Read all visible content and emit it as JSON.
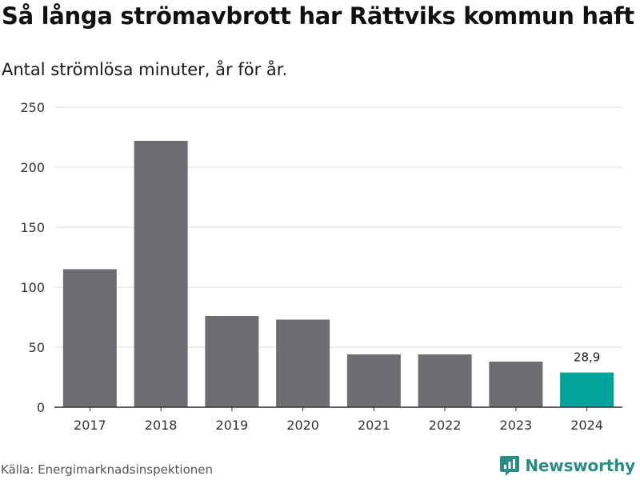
{
  "header": {
    "title": "Så långa strömavbrott har Rättviks kommun haft",
    "subtitle": "Antal strömlösa minuter, år för år."
  },
  "footer": {
    "source": "Källa: Energimarknadsinspektionen",
    "brand": "Newsworthy",
    "brand_icon": "newsworthy-logo-icon"
  },
  "colors": {
    "bar": "#6e6d72",
    "highlight": "#00a39a",
    "grid": "#dddddd",
    "axis": "#333333",
    "brand": "#2b8c85"
  },
  "chart_data": {
    "type": "bar",
    "title": "Så långa strömavbrott har Rättviks kommun haft",
    "subtitle": "Antal strömlösa minuter, år för år.",
    "xlabel": "",
    "ylabel": "",
    "categories": [
      "2017",
      "2018",
      "2019",
      "2020",
      "2021",
      "2022",
      "2023",
      "2024"
    ],
    "values": [
      115,
      222,
      76,
      73,
      44,
      44,
      38,
      28.9
    ],
    "highlight_index": 7,
    "data_labels": [
      {
        "index": 7,
        "text": "28,9"
      }
    ],
    "ylim": [
      0,
      250
    ],
    "yticks": [
      0,
      50,
      100,
      150,
      200,
      250
    ],
    "grid": true,
    "legend": "none"
  }
}
